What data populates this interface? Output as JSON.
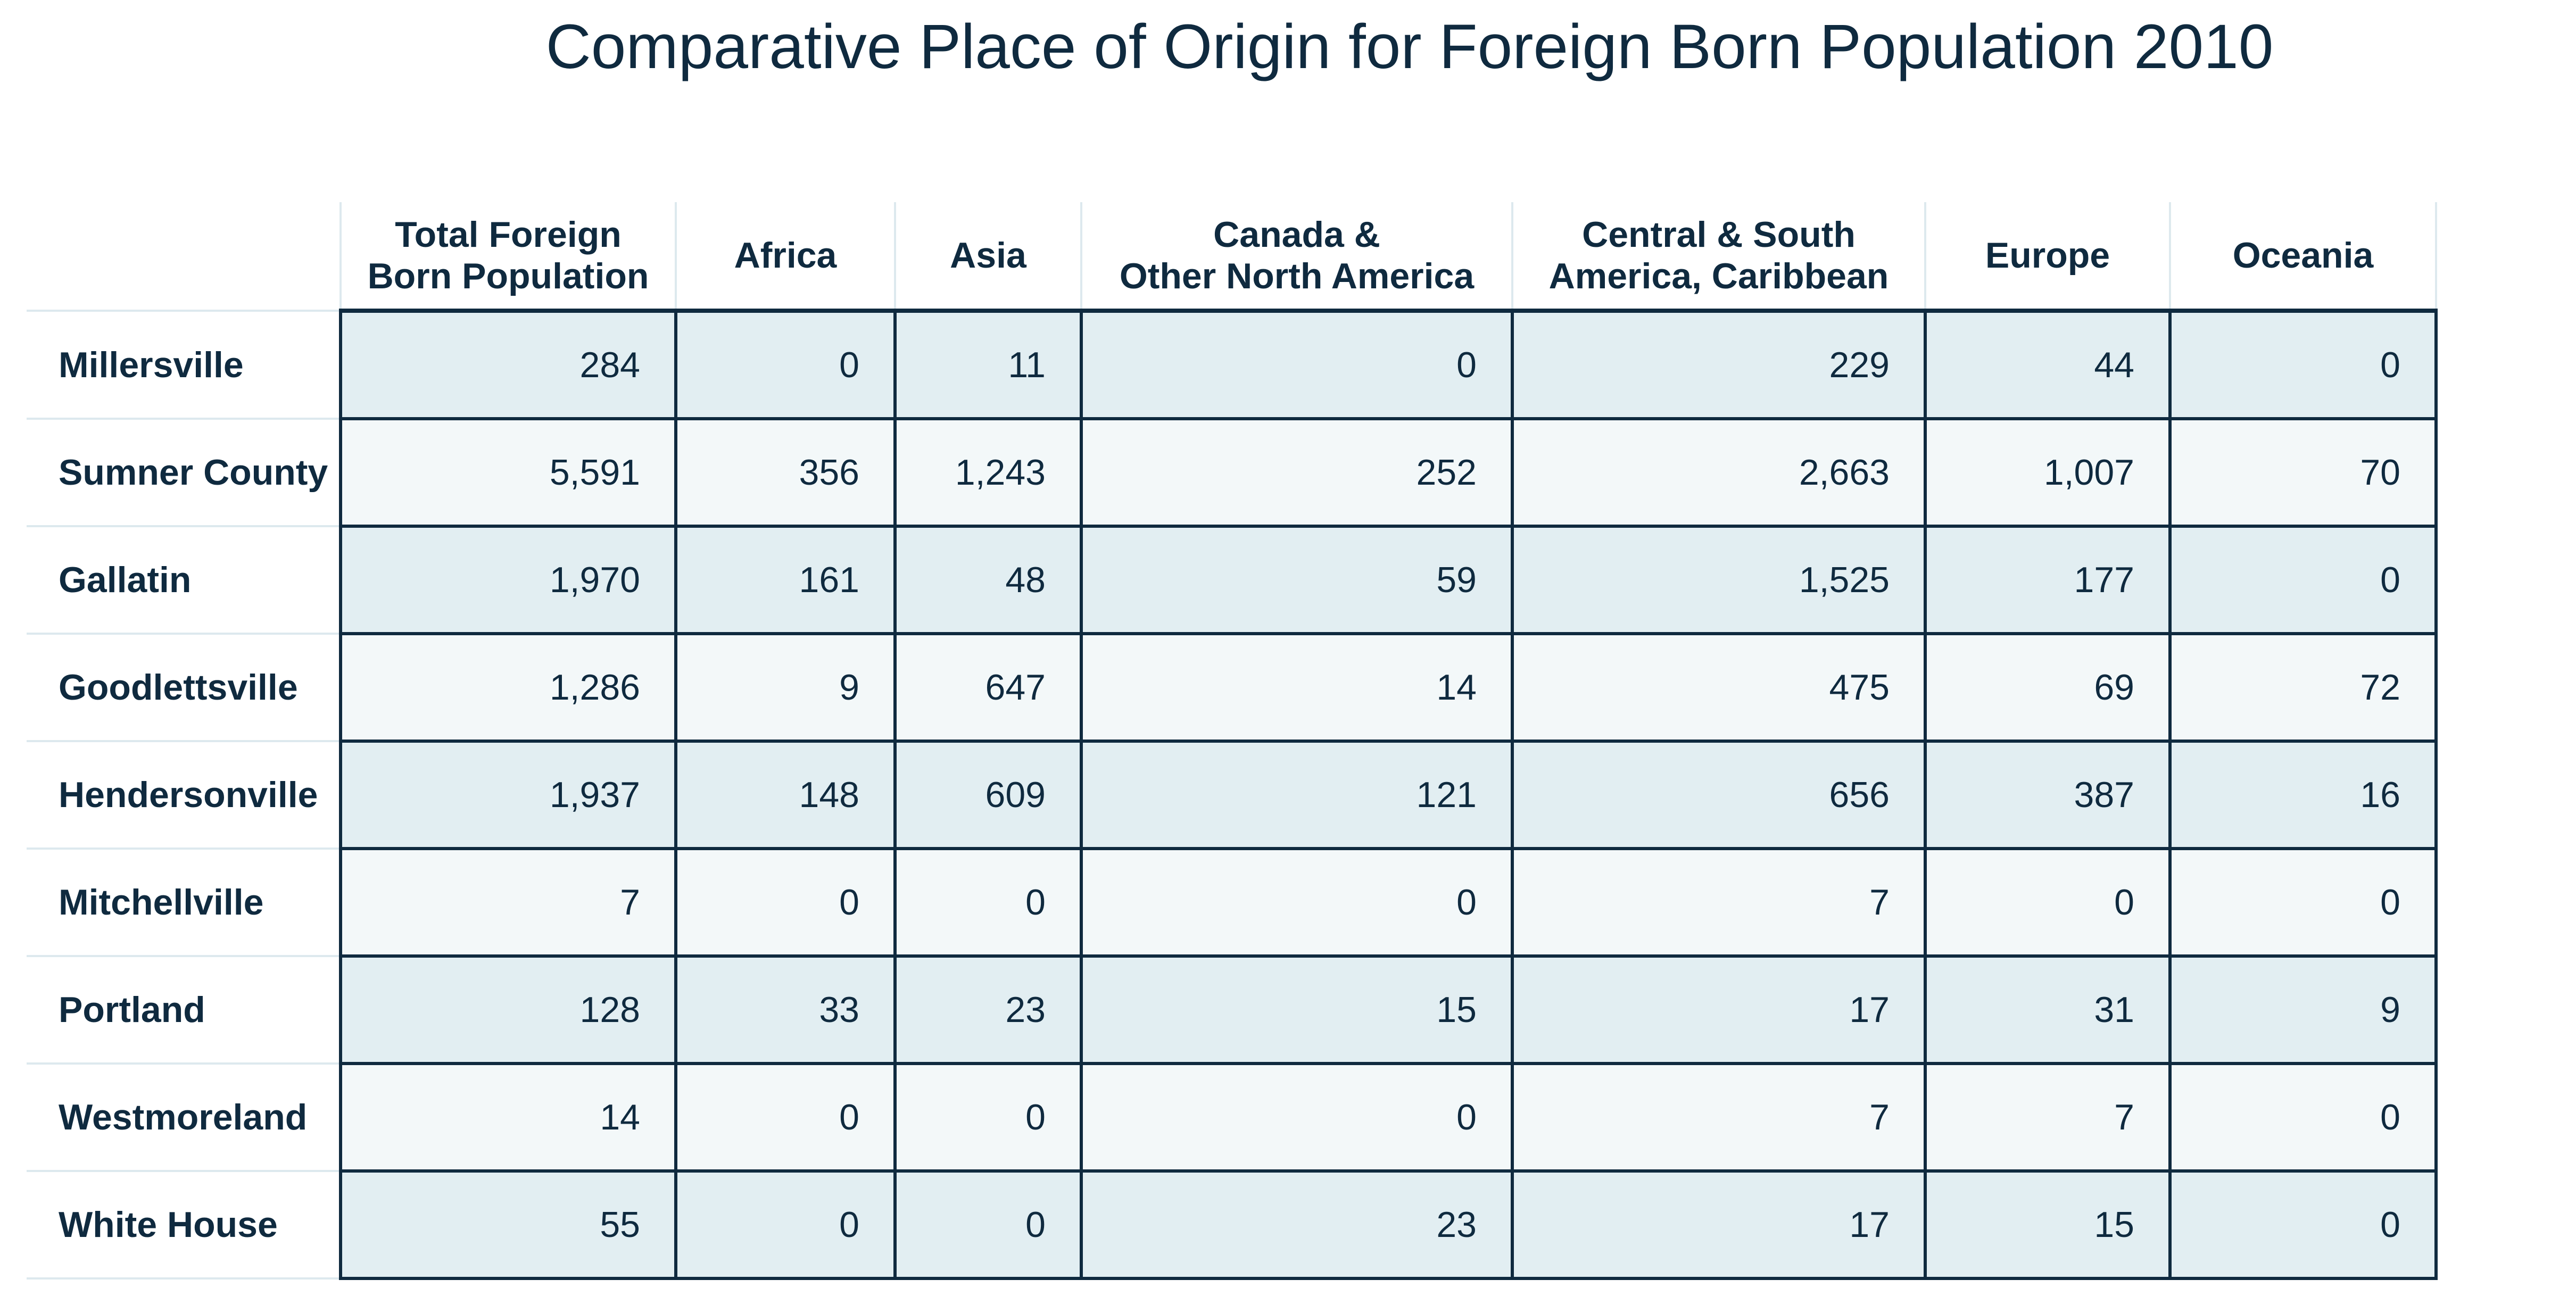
{
  "chart_data": {
    "type": "table",
    "title": "Comparative Place of Origin for Foreign Born Population 2010",
    "columns": [
      [
        "Total Foreign",
        "Born Population"
      ],
      [
        "Africa"
      ],
      [
        "Asia"
      ],
      [
        "Canada &",
        "Other North America"
      ],
      [
        "Central & South",
        "America, Caribbean"
      ],
      [
        "Europe"
      ],
      [
        "Oceania"
      ]
    ],
    "rows": [
      {
        "name": "Millersville",
        "values": [
          "284",
          "0",
          "11",
          "0",
          "229",
          "44",
          "0"
        ]
      },
      {
        "name": "Sumner County",
        "values": [
          "5,591",
          "356",
          "1,243",
          "252",
          "2,663",
          "1,007",
          "70"
        ]
      },
      {
        "name": "Gallatin",
        "values": [
          "1,970",
          "161",
          "48",
          "59",
          "1,525",
          "177",
          "0"
        ]
      },
      {
        "name": "Goodlettsville",
        "values": [
          "1,286",
          "9",
          "647",
          "14",
          "475",
          "69",
          "72"
        ]
      },
      {
        "name": "Hendersonville",
        "values": [
          "1,937",
          "148",
          "609",
          "121",
          "656",
          "387",
          "16"
        ]
      },
      {
        "name": "Mitchellville",
        "values": [
          "7",
          "0",
          "0",
          "0",
          "7",
          "0",
          "0"
        ]
      },
      {
        "name": "Portland",
        "values": [
          "128",
          "33",
          "23",
          "15",
          "17",
          "31",
          "9"
        ]
      },
      {
        "name": "Westmoreland",
        "values": [
          "14",
          "0",
          "0",
          "0",
          "7",
          "7",
          "0"
        ]
      },
      {
        "name": "White House",
        "values": [
          "55",
          "0",
          "0",
          "23",
          "17",
          "15",
          "0"
        ]
      }
    ]
  }
}
